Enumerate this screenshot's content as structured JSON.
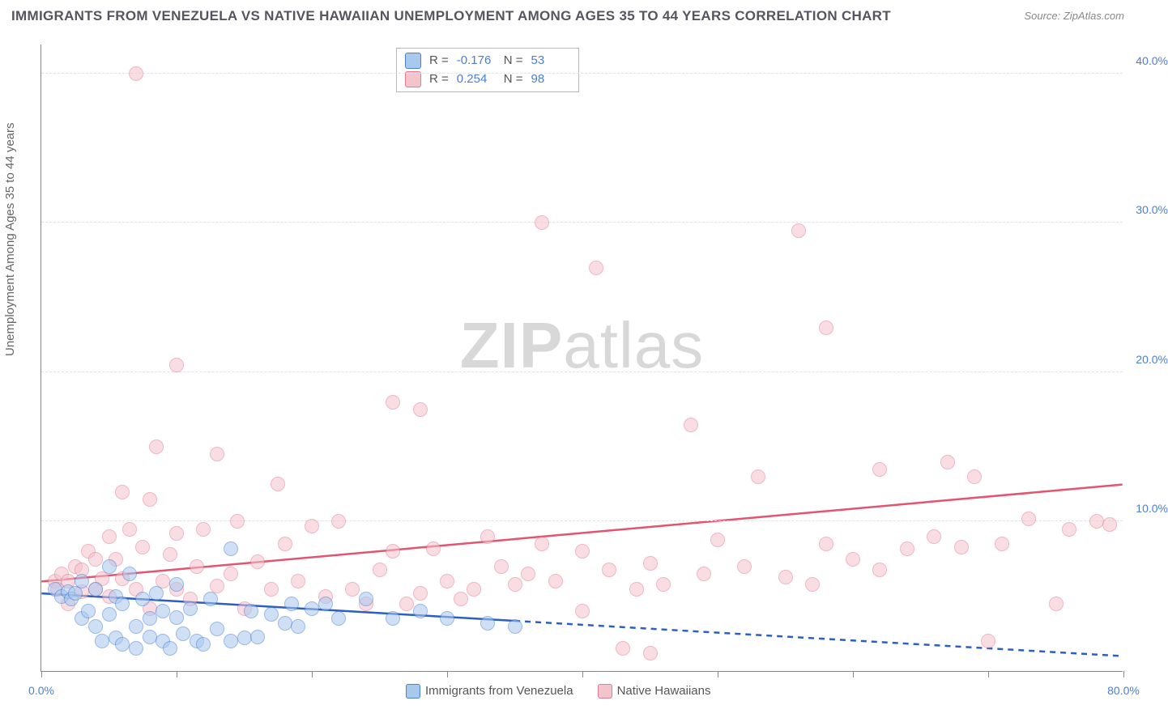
{
  "title": "IMMIGRANTS FROM VENEZUELA VS NATIVE HAWAIIAN UNEMPLOYMENT AMONG AGES 35 TO 44 YEARS CORRELATION CHART",
  "source_prefix": "Source: ",
  "source": "ZipAtlas.com",
  "watermark": "ZIPatlas",
  "watermark_z": "ZIP",
  "watermark_rest": "atlas",
  "ylabel": "Unemployment Among Ages 35 to 44 years",
  "chart": {
    "type": "scatter",
    "xlim": [
      0,
      80
    ],
    "ylim": [
      0,
      42
    ],
    "xtick_labels": {
      "0": "0.0%",
      "80": "80.0%"
    },
    "xtick_positions": [
      0,
      10,
      20,
      30,
      40,
      50,
      60,
      70,
      80
    ],
    "ytick_labels": {
      "10": "10.0%",
      "20": "20.0%",
      "30": "30.0%",
      "40": "40.0%"
    },
    "ytick_positions": [
      10,
      20,
      30,
      40
    ],
    "grid_color": "#e2e2e2",
    "axis_color": "#888888",
    "label_color": "#4a7fd8",
    "background_color": "#ffffff",
    "point_radius": 9,
    "point_opacity": 0.55,
    "series_a": {
      "name": "Immigrants from Venezuela",
      "fill": "#a9c8ee",
      "stroke": "#4a7fd8",
      "trend_color": "#2b5fc3",
      "trend_width": 2.5,
      "r_label": "R = ",
      "r_value": "-0.176",
      "n_label": "N = ",
      "n_value": "53",
      "trend_y_at_x0": 5.2,
      "trend_y_at_xmax": 1.0,
      "trend_solid_until_x": 35,
      "points": [
        [
          1,
          5.5
        ],
        [
          1.5,
          5
        ],
        [
          2,
          5.3
        ],
        [
          2.2,
          4.8
        ],
        [
          2.5,
          5.2
        ],
        [
          3,
          3.5
        ],
        [
          3,
          6
        ],
        [
          3.5,
          4
        ],
        [
          4,
          5.5
        ],
        [
          4,
          3
        ],
        [
          4.5,
          2
        ],
        [
          5,
          3.8
        ],
        [
          5,
          7
        ],
        [
          5.5,
          2.2
        ],
        [
          5.5,
          5
        ],
        [
          6,
          1.8
        ],
        [
          6,
          4.5
        ],
        [
          6.5,
          6.5
        ],
        [
          7,
          3
        ],
        [
          7,
          1.5
        ],
        [
          7.5,
          4.8
        ],
        [
          8,
          2.3
        ],
        [
          8,
          3.5
        ],
        [
          8.5,
          5.2
        ],
        [
          9,
          2
        ],
        [
          9,
          4
        ],
        [
          9.5,
          1.5
        ],
        [
          10,
          3.6
        ],
        [
          10,
          5.8
        ],
        [
          10.5,
          2.5
        ],
        [
          11,
          4.2
        ],
        [
          11.5,
          2
        ],
        [
          12,
          1.8
        ],
        [
          12.5,
          4.8
        ],
        [
          13,
          2.8
        ],
        [
          14,
          8.2
        ],
        [
          14,
          2
        ],
        [
          15,
          2.2
        ],
        [
          15.5,
          4
        ],
        [
          16,
          2.3
        ],
        [
          17,
          3.8
        ],
        [
          18,
          3.2
        ],
        [
          18.5,
          4.5
        ],
        [
          19,
          3
        ],
        [
          20,
          4.2
        ],
        [
          21,
          4.5
        ],
        [
          22,
          3.5
        ],
        [
          24,
          4.8
        ],
        [
          26,
          3.5
        ],
        [
          28,
          4
        ],
        [
          30,
          3.5
        ],
        [
          33,
          3.2
        ],
        [
          35,
          3
        ]
      ]
    },
    "series_b": {
      "name": "Native Hawaiians",
      "fill": "#f4c4cd",
      "stroke": "#e77a94",
      "trend_color": "#e4546f",
      "trend_width": 2.5,
      "r_label": "R = ",
      "r_value": "0.254",
      "n_label": "N = ",
      "n_value": "98",
      "trend_y_at_x0": 6.0,
      "trend_y_at_xmax": 12.5,
      "trend_solid_until_x": 80,
      "points": [
        [
          1,
          6
        ],
        [
          1.2,
          5.5
        ],
        [
          1.5,
          6.5
        ],
        [
          2,
          6
        ],
        [
          2,
          4.5
        ],
        [
          2.5,
          7
        ],
        [
          3,
          5.3
        ],
        [
          3,
          6.8
        ],
        [
          3.5,
          8
        ],
        [
          4,
          5.5
        ],
        [
          4,
          7.5
        ],
        [
          4.5,
          6.2
        ],
        [
          5,
          9
        ],
        [
          5,
          5
        ],
        [
          5.5,
          7.5
        ],
        [
          6,
          12
        ],
        [
          6,
          6.2
        ],
        [
          6.5,
          9.5
        ],
        [
          7,
          40
        ],
        [
          7,
          5.5
        ],
        [
          7.5,
          8.3
        ],
        [
          8,
          11.5
        ],
        [
          8,
          4.2
        ],
        [
          8.5,
          15
        ],
        [
          9,
          6
        ],
        [
          9.5,
          7.8
        ],
        [
          10,
          9.2
        ],
        [
          10,
          5.5
        ],
        [
          10,
          20.5
        ],
        [
          11,
          4.8
        ],
        [
          11.5,
          7
        ],
        [
          12,
          9.5
        ],
        [
          13,
          5.7
        ],
        [
          13,
          14.5
        ],
        [
          14,
          6.5
        ],
        [
          14.5,
          10
        ],
        [
          15,
          4.2
        ],
        [
          16,
          7.3
        ],
        [
          17,
          5.5
        ],
        [
          17.5,
          12.5
        ],
        [
          18,
          8.5
        ],
        [
          19,
          6
        ],
        [
          20,
          9.7
        ],
        [
          21,
          5
        ],
        [
          22,
          10
        ],
        [
          23,
          5.5
        ],
        [
          24,
          4.5
        ],
        [
          25,
          6.8
        ],
        [
          26,
          18
        ],
        [
          26,
          8
        ],
        [
          27,
          4.5
        ],
        [
          28,
          17.5
        ],
        [
          28,
          5.2
        ],
        [
          29,
          8.2
        ],
        [
          30,
          6
        ],
        [
          31,
          4.8
        ],
        [
          32,
          5.5
        ],
        [
          33,
          9
        ],
        [
          34,
          7
        ],
        [
          35,
          5.8
        ],
        [
          36,
          6.5
        ],
        [
          37,
          30
        ],
        [
          37,
          8.5
        ],
        [
          38,
          6
        ],
        [
          40,
          4
        ],
        [
          40,
          8
        ],
        [
          41,
          27
        ],
        [
          42,
          6.8
        ],
        [
          43,
          1.5
        ],
        [
          44,
          5.5
        ],
        [
          45,
          7.2
        ],
        [
          45,
          1.2
        ],
        [
          46,
          5.8
        ],
        [
          48,
          16.5
        ],
        [
          49,
          6.5
        ],
        [
          50,
          8.8
        ],
        [
          52,
          7
        ],
        [
          53,
          13
        ],
        [
          55,
          6.3
        ],
        [
          56,
          29.5
        ],
        [
          57,
          5.8
        ],
        [
          58,
          23
        ],
        [
          58,
          8.5
        ],
        [
          60,
          7.5
        ],
        [
          62,
          6.8
        ],
        [
          62,
          13.5
        ],
        [
          64,
          8.2
        ],
        [
          66,
          9
        ],
        [
          67,
          14
        ],
        [
          68,
          8.3
        ],
        [
          69,
          13
        ],
        [
          70,
          2
        ],
        [
          71,
          8.5
        ],
        [
          73,
          10.2
        ],
        [
          75,
          4.5
        ],
        [
          76,
          9.5
        ],
        [
          78,
          10
        ],
        [
          79,
          9.8
        ]
      ]
    }
  },
  "legend_bottom": [
    {
      "swatch_fill": "#a9c8ee",
      "swatch_stroke": "#4a7fd8",
      "label": "Immigrants from Venezuela"
    },
    {
      "swatch_fill": "#f4c4cd",
      "swatch_stroke": "#e77a94",
      "label": "Native Hawaiians"
    }
  ]
}
